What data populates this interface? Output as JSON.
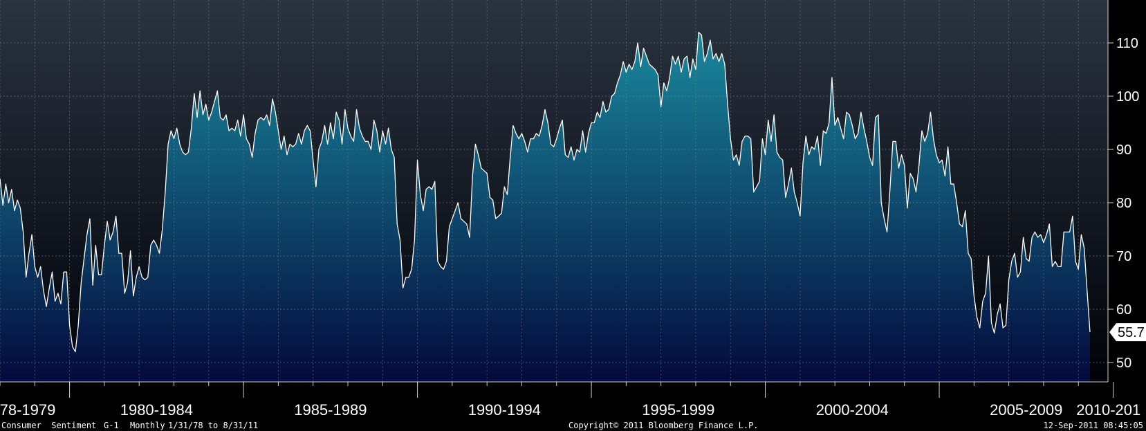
{
  "chart_data": {
    "type": "area",
    "title": "",
    "xlabel": "",
    "ylabel": "",
    "series_name": "Consumer Sentiment",
    "ylim": [
      46,
      115
    ],
    "yticks": [
      50,
      60,
      70,
      80,
      90,
      100,
      110
    ],
    "grid": true,
    "period_labels": [
      "78-1979",
      "1980-1984",
      "1985-1989",
      "1990-1994",
      "1995-1999",
      "2000-2004",
      "2005-2009",
      "2010-201"
    ],
    "x_start": "1978-01",
    "x_end": "2011-08",
    "last_value_label": "55.7",
    "values": [
      84.5,
      79.5,
      83.5,
      80,
      82.5,
      78.5,
      80.5,
      79,
      74.5,
      66,
      70.5,
      74,
      68,
      66,
      68,
      63.5,
      60.5,
      64,
      67,
      61.5,
      63,
      61,
      67,
      67,
      57,
      53,
      52,
      57,
      65,
      69.5,
      74,
      77,
      64.5,
      72,
      66.5,
      66.5,
      72,
      76.5,
      73,
      74.5,
      77.5,
      70.5,
      70.5,
      63,
      65,
      71,
      62.5,
      66,
      68,
      66,
      65.5,
      66,
      72,
      73,
      72,
      70.5,
      75,
      82,
      91,
      93.5,
      92,
      94,
      91,
      89.5,
      89,
      89.5,
      94,
      100.5,
      96,
      101,
      96.5,
      98.5,
      95.5,
      97,
      99,
      101,
      96,
      95.5,
      96.5,
      93.5,
      94,
      93.5,
      95.5,
      92.5,
      96.5,
      92,
      91,
      88.5,
      93,
      95.5,
      96,
      95.5,
      96.5,
      94.5,
      99.5,
      97,
      93.5,
      90,
      92.5,
      89,
      91,
      90.5,
      91,
      93,
      91,
      93.5,
      94.5,
      93.5,
      88,
      83,
      90,
      91.5,
      94.5,
      91,
      95,
      92,
      97,
      95.5,
      91,
      97.5,
      94,
      92.5,
      91.5,
      97.5,
      94,
      92.5,
      91.5,
      91.5,
      90,
      95.5,
      93.5,
      89.5,
      93.5,
      91,
      94,
      90,
      88.5,
      76,
      73,
      64,
      66,
      66,
      67.5,
      73,
      88,
      81.5,
      78.5,
      82.5,
      83,
      82.5,
      84,
      69,
      68,
      67.5,
      69,
      75.5,
      77,
      78.5,
      80,
      77,
      76.5,
      76,
      73.5,
      85,
      91,
      89,
      86.5,
      86,
      85.5,
      81,
      80.5,
      77,
      77.5,
      78,
      83,
      81.5,
      88.5,
      94.5,
      93,
      92,
      93,
      91.5,
      89.5,
      92,
      92,
      93,
      92.5,
      94.5,
      97.5,
      95,
      91,
      90.5,
      92,
      94,
      95.5,
      89,
      88.5,
      90.5,
      88,
      90,
      89.5,
      93.5,
      89.5,
      93,
      95,
      95,
      97,
      96,
      99,
      97,
      97.5,
      100,
      100.5,
      102.5,
      104,
      106.5,
      104.5,
      106,
      105,
      106.5,
      110,
      105.5,
      109,
      107.5,
      106,
      105.5,
      105,
      104,
      98,
      102.5,
      101,
      103.5,
      107.5,
      106,
      107.5,
      104.5,
      107,
      107.5,
      103.5,
      107,
      105,
      112,
      111.5,
      106.5,
      108,
      110.5,
      107,
      108,
      106.5,
      108,
      106,
      98.5,
      92,
      88,
      89,
      87,
      91.5,
      92.5,
      92.5,
      92,
      82,
      83,
      84,
      92,
      89,
      95.5,
      91.5,
      96.5,
      89.5,
      88.5,
      88,
      81,
      83.5,
      86.5,
      82,
      80,
      77.5,
      87.5,
      92.5,
      89,
      90.5,
      90,
      92.5,
      87,
      93.5,
      93,
      95,
      103.5,
      94.5,
      96,
      94,
      92,
      97,
      96.5,
      94.5,
      92,
      93,
      97,
      94,
      91.5,
      88.5,
      87,
      96,
      96.5,
      80,
      77,
      74.5,
      82.5,
      91.5,
      91.5,
      86.5,
      89,
      87,
      79,
      85.5,
      84.5,
      82,
      87,
      93.5,
      91.5,
      93,
      97,
      92,
      89,
      87.5,
      88,
      85,
      90.5,
      83.5,
      83.5,
      80,
      76,
      75.5,
      78.5,
      70.5,
      69.5,
      62.5,
      58.5,
      56.5,
      61.5,
      63,
      70,
      57.5,
      55.5,
      59,
      61,
      56.5,
      57,
      65.5,
      69,
      70.5,
      66,
      67,
      73.5,
      69.5,
      69,
      73.5,
      74.5,
      73.5,
      74,
      72.5,
      74,
      76,
      68,
      69,
      68,
      68,
      74.5,
      74.5,
      74.5,
      77.5,
      69,
      67.5,
      74,
      71.5,
      63.5,
      55.7
    ],
    "colors": {
      "line": "#ffffff",
      "fill_top": "#1a8a9e",
      "fill_bottom": "#030a3c",
      "bg_top": "#2a3340",
      "bg_bottom": "#000208",
      "grid": "#8a8a8a",
      "marker": "#ffffff"
    }
  },
  "footer": {
    "series": "Consumer  Sentiment",
    "code": "G-1",
    "frequency": "Monthly",
    "range": "1/31/78 to 8/31/11",
    "copyright": "Copyright© 2011 Bloomberg Finance L.P.",
    "timestamp": "12-Sep-2011 08:45:05"
  }
}
